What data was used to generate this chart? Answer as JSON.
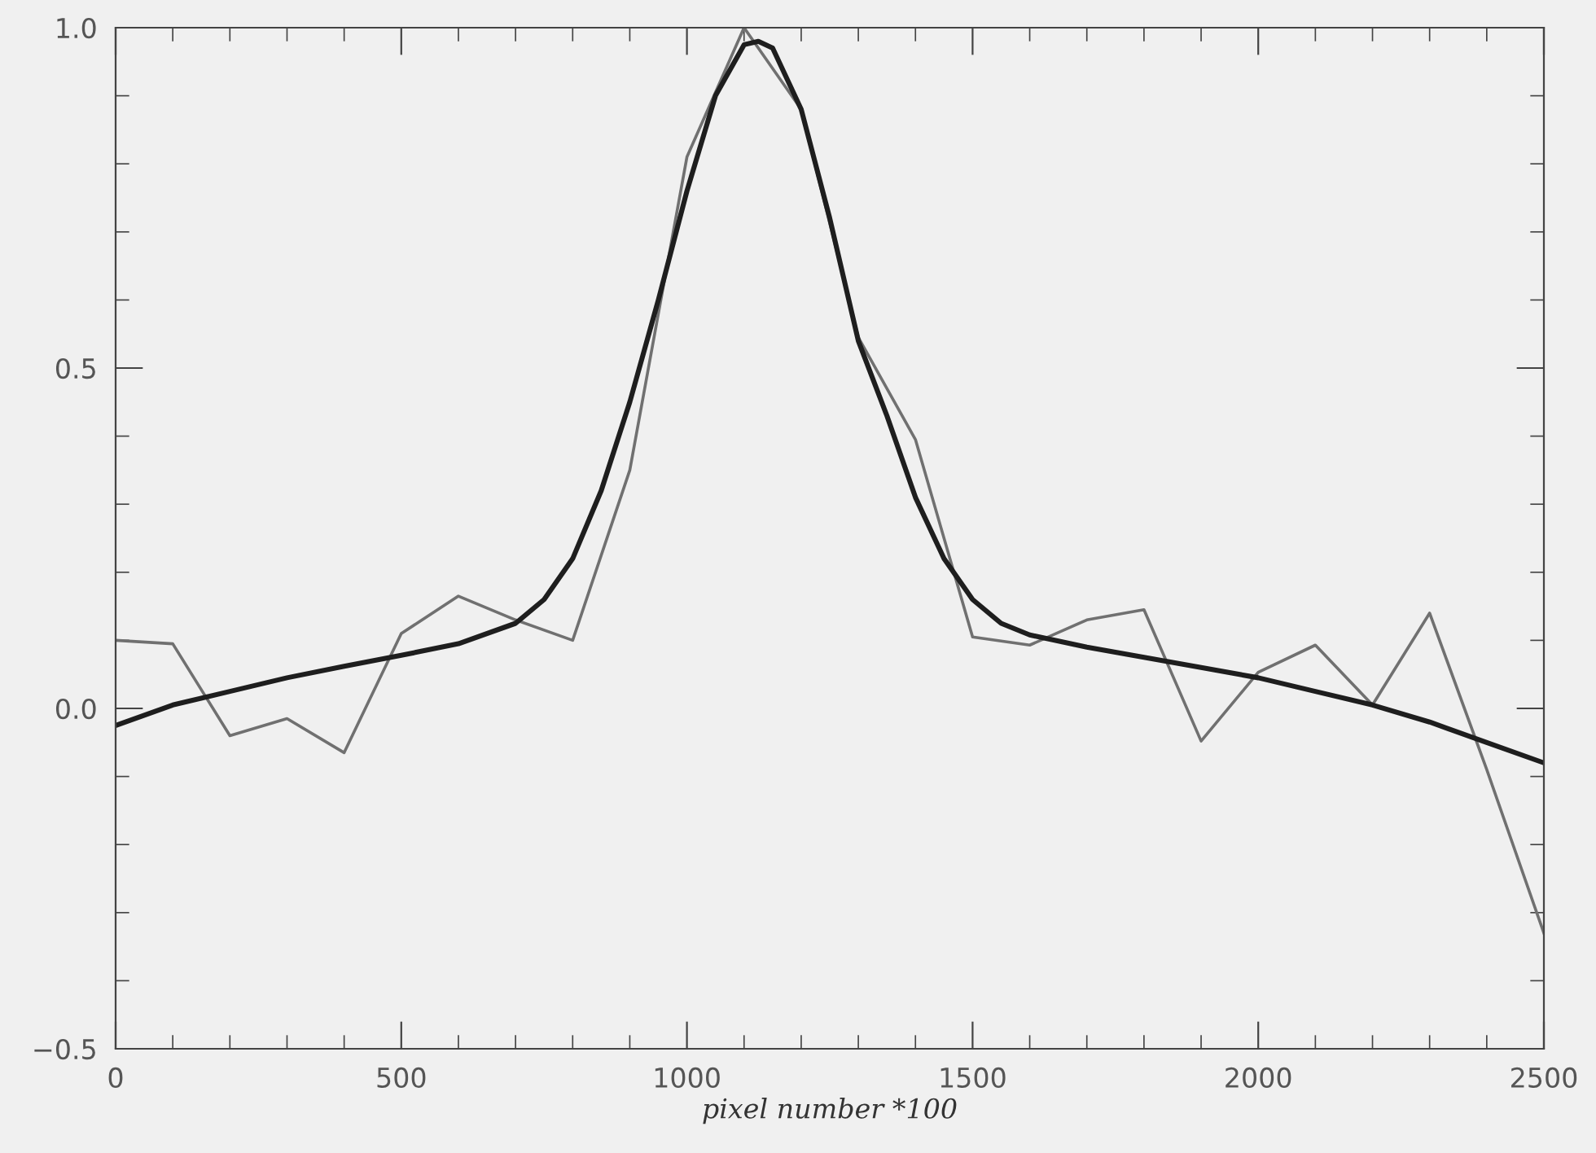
{
  "chart_data": {
    "type": "line",
    "xlabel": "pixel number *100",
    "xlim": [
      0,
      2500
    ],
    "xticks": [
      0,
      500,
      1000,
      1500,
      2000,
      2500
    ],
    "ylim": [
      -0.5,
      1.0
    ],
    "yticks": [
      {
        "value": -0.5,
        "label": "−0.5"
      },
      {
        "value": 0.0,
        "label": "0.0"
      },
      {
        "value": 0.5,
        "label": "0.5"
      },
      {
        "value": 1.0,
        "label": "1.0"
      }
    ],
    "grid": false,
    "legend": false,
    "series": [
      {
        "color": "#707070",
        "x": [
          0,
          100,
          200,
          300,
          400,
          500,
          600,
          700,
          800,
          900,
          1000,
          1100,
          1200,
          1300,
          1400,
          1500,
          1600,
          1700,
          1800,
          1900,
          2000,
          2100,
          2200,
          2300,
          2400,
          2500
        ],
        "values": [
          0.1,
          0.095,
          -0.04,
          -0.015,
          -0.065,
          0.11,
          0.165,
          0.13,
          0.1,
          0.35,
          0.81,
          1.0,
          0.88,
          0.545,
          0.395,
          0.105,
          0.093,
          0.13,
          0.145,
          -0.048,
          0.053,
          0.093,
          0.005,
          0.14,
          -0.09,
          -0.33
        ]
      },
      {
        "color": "#1e1e1e",
        "x": [
          0,
          100,
          200,
          300,
          400,
          500,
          600,
          700,
          750,
          800,
          850,
          900,
          950,
          1000,
          1050,
          1100,
          1125,
          1150,
          1200,
          1250,
          1300,
          1350,
          1400,
          1450,
          1500,
          1550,
          1600,
          1700,
          1800,
          1900,
          2000,
          2100,
          2200,
          2300,
          2400,
          2500
        ],
        "values": [
          -0.025,
          0.005,
          0.025,
          0.045,
          0.062,
          0.078,
          0.095,
          0.125,
          0.16,
          0.22,
          0.32,
          0.45,
          0.6,
          0.76,
          0.9,
          0.975,
          0.98,
          0.97,
          0.88,
          0.72,
          0.54,
          0.43,
          0.31,
          0.22,
          0.16,
          0.125,
          0.108,
          0.09,
          0.075,
          0.06,
          0.045,
          0.025,
          0.005,
          -0.02,
          -0.05,
          -0.08
        ]
      }
    ]
  }
}
